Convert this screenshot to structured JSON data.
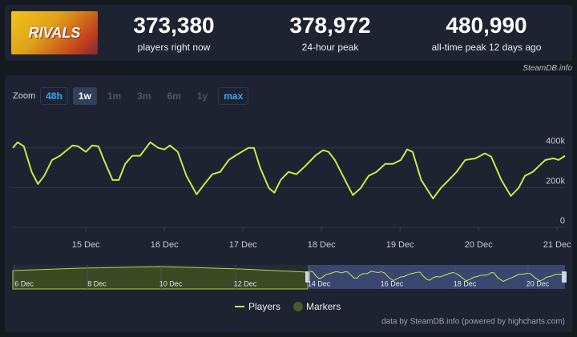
{
  "header": {
    "logo_text": "RIVALS",
    "stats": [
      {
        "value": "373,380",
        "label": "players right now"
      },
      {
        "value": "378,972",
        "label": "24-hour peak"
      },
      {
        "value": "480,990",
        "label": "all-time peak 12 days ago"
      }
    ],
    "source": "SteamDB.info"
  },
  "zoom": {
    "label": "Zoom",
    "buttons": [
      "48h",
      "1w",
      "1m",
      "3m",
      "6m",
      "1y",
      "max"
    ]
  },
  "chart_data": {
    "type": "line",
    "x": [
      14.07,
      14.13,
      14.21,
      14.31,
      14.39,
      14.47,
      14.57,
      14.67,
      14.83,
      14.9,
      15.0,
      15.08,
      15.16,
      15.23,
      15.34,
      15.42,
      15.5,
      15.59,
      15.69,
      15.82,
      15.92,
      16.0,
      16.07,
      16.17,
      16.28,
      16.41,
      16.51,
      16.61,
      16.71,
      16.82,
      16.9,
      17.07,
      17.14,
      17.22,
      17.33,
      17.4,
      17.48,
      17.58,
      17.68,
      17.79,
      17.92,
      18.02,
      18.09,
      18.17,
      18.3,
      18.4,
      18.5,
      18.6,
      18.7,
      18.81,
      18.91,
      19.01,
      19.09,
      19.16,
      19.27,
      19.42,
      19.52,
      19.62,
      19.72,
      19.83,
      19.96,
      20.08,
      20.16,
      20.29,
      20.41,
      20.51,
      20.59,
      20.69,
      20.85,
      20.95,
      21.02,
      21.1
    ],
    "series": [
      {
        "name": "Players",
        "color": "#c8e84a",
        "values": [
          400000,
          428000,
          408000,
          279000,
          218000,
          259000,
          339000,
          360000,
          412000,
          408000,
          380000,
          412000,
          408000,
          339000,
          238000,
          238000,
          319000,
          360000,
          360000,
          428000,
          400000,
          392000,
          412000,
          380000,
          259000,
          166000,
          218000,
          267000,
          279000,
          339000,
          360000,
          400000,
          400000,
          299000,
          198000,
          174000,
          238000,
          279000,
          267000,
          307000,
          360000,
          388000,
          380000,
          339000,
          238000,
          162000,
          198000,
          259000,
          279000,
          319000,
          319000,
          339000,
          392000,
          380000,
          238000,
          145000,
          198000,
          238000,
          279000,
          339000,
          347000,
          372000,
          356000,
          238000,
          158000,
          198000,
          259000,
          279000,
          339000,
          347000,
          339000,
          360000
        ]
      }
    ],
    "marker_legend": {
      "name": "Markers",
      "color": "#4a5a2c"
    },
    "xlim": [
      14.07,
      21.1
    ],
    "xticks": [
      {
        "value": 15,
        "label": "15 Dec"
      },
      {
        "value": 16,
        "label": "16 Dec"
      },
      {
        "value": 17,
        "label": "17 Dec"
      },
      {
        "value": 18,
        "label": "18 Dec"
      },
      {
        "value": 19,
        "label": "19 Dec"
      },
      {
        "value": 20,
        "label": "20 Dec"
      },
      {
        "value": 21,
        "label": "21 Dec"
      }
    ],
    "ylim": [
      0,
      580000
    ],
    "yticks": [
      0,
      {
        "value": 200000,
        "label": "200k"
      },
      {
        "value": 400000,
        "label": "400k"
      }
    ],
    "grid": true
  },
  "navigator": {
    "labels": [
      "6 Dec",
      "8 Dec",
      "10 Dec",
      "12 Dec",
      "14 Dec",
      "16 Dec",
      "18 Dec",
      "20 Dec"
    ]
  },
  "footer": "data by SteamDB.info (powered by highcharts.com)"
}
